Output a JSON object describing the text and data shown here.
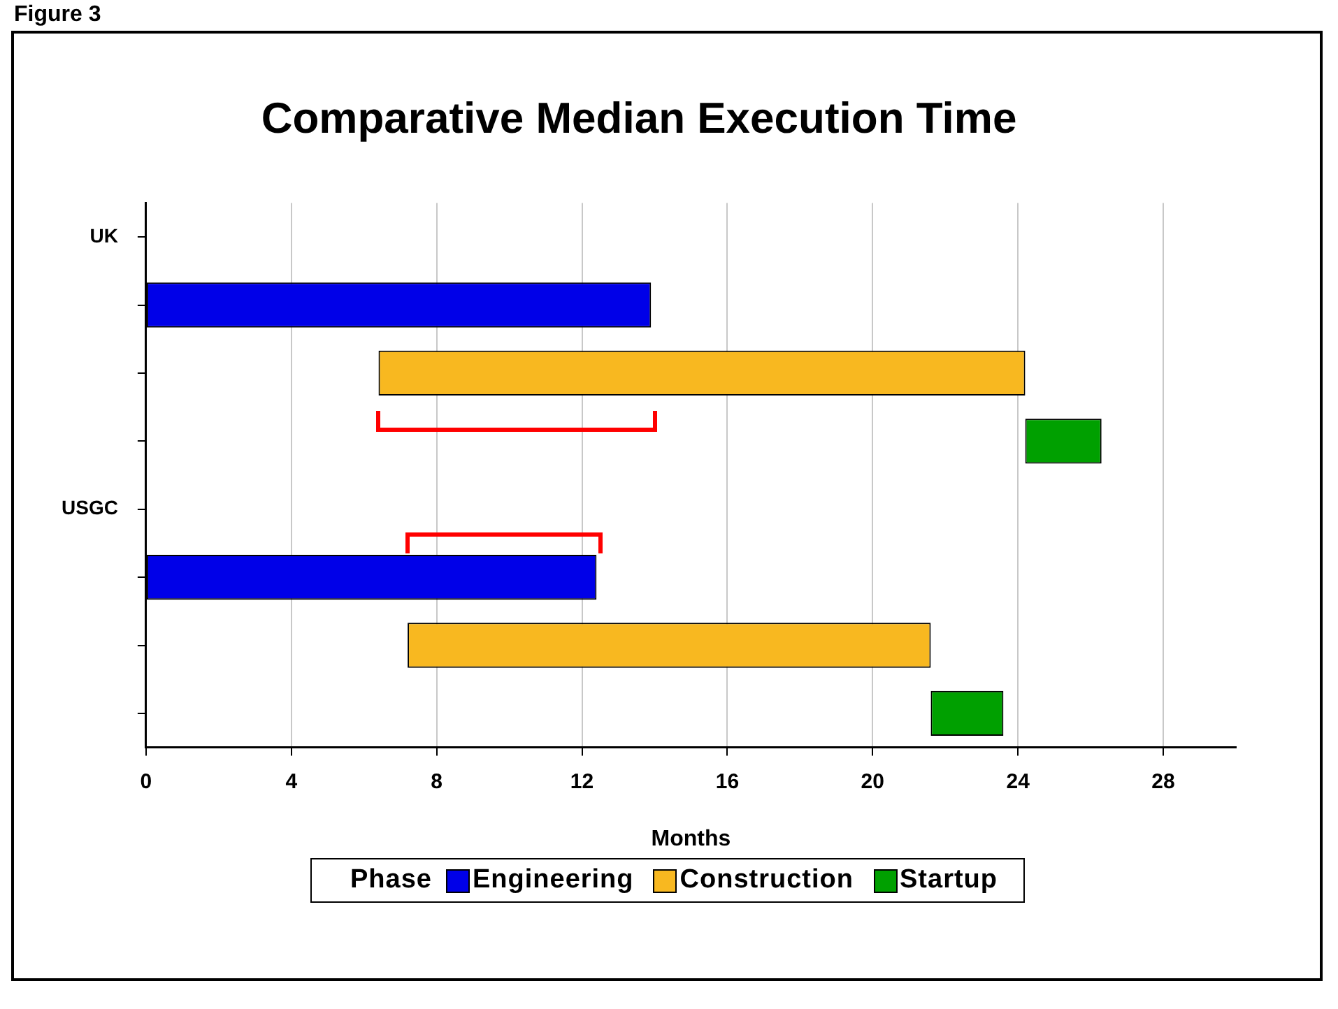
{
  "chart_data": {
    "type": "bar",
    "orientation": "horizontal",
    "title": "Comparative Median Execution Time",
    "xlabel": "Months",
    "legend_title": "Phase",
    "legend": "bottom",
    "grid": "x",
    "categories": [
      "UK",
      null,
      null,
      null,
      "USGC",
      null,
      null,
      null
    ],
    "xlim": [
      0,
      30
    ],
    "xticks": [
      0,
      4,
      8,
      12,
      16,
      20,
      24,
      28
    ],
    "series": [
      {
        "name": "Engineering",
        "color": "#0000e8",
        "base": [
          null,
          0,
          null,
          null,
          null,
          0,
          null,
          null
        ],
        "values": [
          null,
          13.9,
          null,
          null,
          null,
          12.4,
          null,
          null
        ]
      },
      {
        "name": "Construction",
        "color": "#f8b820",
        "base": [
          null,
          null,
          6.4,
          null,
          null,
          null,
          7.2,
          null
        ],
        "values": [
          null,
          null,
          17.8,
          null,
          null,
          null,
          14.4,
          null
        ]
      },
      {
        "name": "Startup",
        "color": "#00a000",
        "base": [
          null,
          null,
          null,
          24.2,
          null,
          null,
          null,
          21.6
        ],
        "values": [
          null,
          null,
          null,
          2.1,
          null,
          null,
          null,
          2.0
        ]
      }
    ],
    "annotations": [
      "Figure 3"
    ]
  }
}
